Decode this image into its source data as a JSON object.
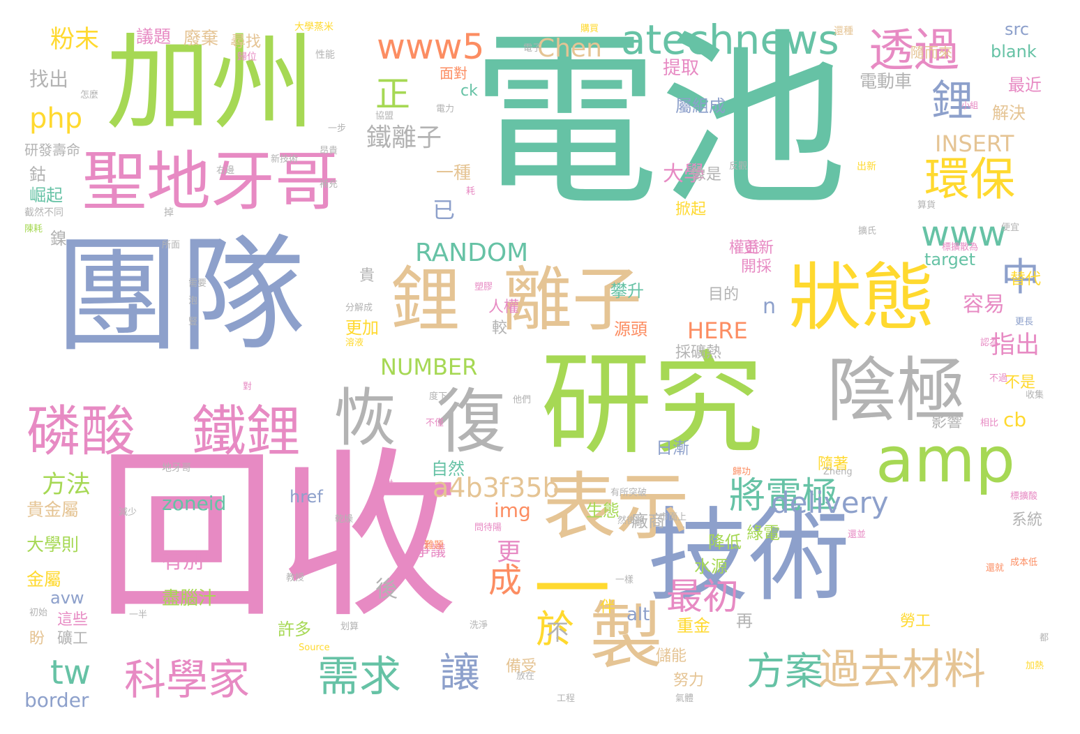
{
  "palette": {
    "green": "#66c2a5",
    "orange": "#fc8d62",
    "blue": "#8da0cb",
    "pink": "#e78ac3",
    "lime": "#a6d854",
    "yellow": "#ffd92f",
    "tan": "#e5c494",
    "gray": "#b3b3b3"
  },
  "words": [
    {
      "text": "電池",
      "color": "green"
    },
    {
      "text": "加州",
      "color": "lime"
    },
    {
      "text": "團隊",
      "color": "blue"
    },
    {
      "text": "回收",
      "color": "pink"
    },
    {
      "text": "研究",
      "color": "lime"
    },
    {
      "text": "技術",
      "color": "blue"
    },
    {
      "text": "聖地牙哥",
      "color": "pink"
    },
    {
      "text": "鋰",
      "color": "tan"
    },
    {
      "text": "離子",
      "color": "tan"
    },
    {
      "text": "狀態",
      "color": "yellow"
    },
    {
      "text": "陰極",
      "color": "gray"
    },
    {
      "text": "amp",
      "color": "lime"
    },
    {
      "text": "表示",
      "color": "tan"
    },
    {
      "text": "製",
      "color": "tan"
    },
    {
      "text": "恢",
      "color": "gray"
    },
    {
      "text": "復",
      "color": "gray"
    },
    {
      "text": "磷酸",
      "color": "pink"
    },
    {
      "text": "鐵鋰",
      "color": "pink"
    },
    {
      "text": "一",
      "color": "yellow"
    },
    {
      "text": "atechnews",
      "color": "green"
    },
    {
      "text": "www5",
      "color": "orange"
    },
    {
      "text": "透過",
      "color": "pink"
    },
    {
      "text": "環保",
      "color": "yellow"
    },
    {
      "text": "鋰",
      "color": "blue"
    },
    {
      "text": "www",
      "color": "green"
    },
    {
      "text": "中",
      "color": "blue"
    },
    {
      "text": "科學家",
      "color": "pink"
    },
    {
      "text": "需求",
      "color": "green"
    },
    {
      "text": "讓",
      "color": "blue"
    },
    {
      "text": "方案",
      "color": "green"
    },
    {
      "text": "過去材料",
      "color": "tan"
    },
    {
      "text": "將電極",
      "color": "green"
    },
    {
      "text": "於",
      "color": "yellow"
    },
    {
      "text": "最初",
      "color": "pink"
    },
    {
      "text": "delivery",
      "color": "blue"
    },
    {
      "text": "a4b3f35b",
      "color": "tan"
    },
    {
      "text": "成",
      "color": "orange"
    },
    {
      "text": "正",
      "color": "lime"
    },
    {
      "text": "php",
      "color": "yellow"
    },
    {
      "text": "Chen",
      "color": "tan"
    },
    {
      "text": "鐵離子",
      "color": "gray"
    },
    {
      "text": "RANDOM",
      "color": "green"
    },
    {
      "text": "NUMBER",
      "color": "lime"
    },
    {
      "text": "HERE",
      "color": "orange"
    },
    {
      "text": "INSERT",
      "color": "tan"
    },
    {
      "text": "粉末",
      "color": "yellow"
    },
    {
      "text": "議題",
      "color": "pink"
    },
    {
      "text": "廢棄",
      "color": "tan"
    },
    {
      "text": "尋找",
      "color": "tan"
    },
    {
      "text": "找出",
      "color": "gray"
    },
    {
      "text": "n",
      "color": "blue"
    },
    {
      "text": "已",
      "color": "blue"
    },
    {
      "text": "大學",
      "color": "pink"
    },
    {
      "text": "容易",
      "color": "pink"
    },
    {
      "text": "指出",
      "color": "pink"
    },
    {
      "text": "cb",
      "color": "yellow"
    },
    {
      "text": "tw",
      "color": "green"
    },
    {
      "text": "方法",
      "color": "lime"
    },
    {
      "text": "zoneid",
      "color": "green"
    },
    {
      "text": "img",
      "color": "orange"
    },
    {
      "text": "有別",
      "color": "pink"
    },
    {
      "text": "後",
      "color": "gray"
    },
    {
      "text": "更",
      "color": "pink"
    },
    {
      "text": "不",
      "color": "gray"
    },
    {
      "text": "href",
      "color": "blue"
    },
    {
      "text": "avw",
      "color": "blue"
    },
    {
      "text": "alt",
      "color": "blue"
    },
    {
      "text": "border",
      "color": "blue"
    },
    {
      "text": "src",
      "color": "blue"
    },
    {
      "text": "blank",
      "color": "green"
    },
    {
      "text": "target",
      "color": "green"
    },
    {
      "text": "ck",
      "color": "green"
    },
    {
      "text": "提取",
      "color": "pink"
    },
    {
      "text": "屬組成",
      "color": "blue"
    },
    {
      "text": "電動車",
      "color": "gray"
    },
    {
      "text": "最近",
      "color": "pink"
    },
    {
      "text": "解決",
      "color": "tan"
    },
    {
      "text": "面對",
      "color": "orange"
    },
    {
      "text": "一種",
      "color": "tan"
    },
    {
      "text": "攀升",
      "color": "green"
    },
    {
      "text": "源頭",
      "color": "orange"
    },
    {
      "text": "採礦熱",
      "color": "gray"
    },
    {
      "text": "日漸",
      "color": "blue"
    },
    {
      "text": "自然",
      "color": "green"
    },
    {
      "text": "生態",
      "color": "lime"
    },
    {
      "text": "降低",
      "color": "lime"
    },
    {
      "text": "綠電",
      "color": "lime"
    },
    {
      "text": "水源",
      "color": "lime"
    },
    {
      "text": "廠商",
      "color": "gray"
    },
    {
      "text": "盡腦汁",
      "color": "lime"
    },
    {
      "text": "許多",
      "color": "lime"
    },
    {
      "text": "重金",
      "color": "yellow"
    },
    {
      "text": "再",
      "color": "gray"
    },
    {
      "text": "儲能",
      "color": "tan"
    },
    {
      "text": "努力",
      "color": "tan"
    },
    {
      "text": "備受",
      "color": "tan"
    },
    {
      "text": "貴金屬",
      "color": "tan"
    },
    {
      "text": "大學則",
      "color": "lime"
    },
    {
      "text": "金屬",
      "color": "yellow"
    },
    {
      "text": "這些",
      "color": "pink"
    },
    {
      "text": "盼",
      "color": "tan"
    },
    {
      "text": "礦工",
      "color": "gray"
    },
    {
      "text": "鈷",
      "color": "gray"
    },
    {
      "text": "崛起",
      "color": "green"
    },
    {
      "text": "鎳",
      "color": "gray"
    },
    {
      "text": "研發壽命",
      "color": "gray"
    },
    {
      "text": "權益",
      "color": "pink"
    },
    {
      "text": "貴",
      "color": "gray"
    },
    {
      "text": "更加",
      "color": "yellow"
    },
    {
      "text": "較",
      "color": "gray"
    },
    {
      "text": "影響",
      "color": "gray"
    },
    {
      "text": "隨著",
      "color": "yellow"
    },
    {
      "text": "系統",
      "color": "gray"
    },
    {
      "text": "勞工",
      "color": "yellow"
    },
    {
      "text": "不是",
      "color": "yellow"
    },
    {
      "text": "更新",
      "color": "pink"
    },
    {
      "text": "替代",
      "color": "yellow"
    },
    {
      "text": "像是",
      "color": "gray"
    },
    {
      "text": "掀起",
      "color": "yellow"
    },
    {
      "text": "開採",
      "color": "pink"
    },
    {
      "text": "目的",
      "color": "gray"
    },
    {
      "text": "伴",
      "color": "yellow"
    },
    {
      "text": "爭議",
      "color": "pink"
    },
    {
      "text": "人權",
      "color": "pink"
    },
    {
      "text": "隨而來",
      "color": "tan"
    },
    {
      "text": "大學蒸米",
      "color": "yellow"
    },
    {
      "text": "購買",
      "color": "yellow"
    },
    {
      "text": "電子",
      "color": "gray"
    },
    {
      "text": "還種",
      "color": "tan"
    },
    {
      "text": "歸位",
      "color": "pink"
    },
    {
      "text": "性能",
      "color": "gray"
    },
    {
      "text": "怎麼",
      "color": "gray"
    },
    {
      "text": "協盟",
      "color": "gray"
    },
    {
      "text": "電力",
      "color": "gray"
    },
    {
      "text": "小組",
      "color": "pink"
    },
    {
      "text": "一步",
      "color": "gray"
    },
    {
      "text": "昂貴",
      "color": "gray"
    },
    {
      "text": "新技術",
      "color": "gray"
    },
    {
      "text": "右邊",
      "color": "gray"
    },
    {
      "text": "補充",
      "color": "gray"
    },
    {
      "text": "掉",
      "color": "gray"
    },
    {
      "text": "截然不同",
      "color": "gray"
    },
    {
      "text": "所面",
      "color": "gray"
    },
    {
      "text": "反觀",
      "color": "gray"
    },
    {
      "text": "出新",
      "color": "yellow"
    },
    {
      "text": "算貨",
      "color": "gray"
    },
    {
      "text": "擴氏",
      "color": "gray"
    },
    {
      "text": "便宜",
      "color": "gray"
    },
    {
      "text": "標擴散為",
      "color": "pink"
    },
    {
      "text": "地牙哥",
      "color": "gray"
    },
    {
      "text": "減少",
      "color": "gray"
    },
    {
      "text": "分解成",
      "color": "gray"
    },
    {
      "text": "溶液",
      "color": "yellow"
    },
    {
      "text": "塑膠",
      "color": "pink"
    },
    {
      "text": "提供",
      "color": "pink"
    },
    {
      "text": "有所突破",
      "color": "gray"
    },
    {
      "text": "歸功",
      "color": "orange"
    },
    {
      "text": "Zheng",
      "color": "gray"
    },
    {
      "text": "標擴酸",
      "color": "pink"
    },
    {
      "text": "乾燥",
      "color": "gray"
    },
    {
      "text": "然後將",
      "color": "gray"
    },
    {
      "text": "市面上",
      "color": "gray"
    },
    {
      "text": "問待陽",
      "color": "pink"
    },
    {
      "text": "難題",
      "color": "orange"
    },
    {
      "text": "還並",
      "color": "pink"
    },
    {
      "text": "成本低",
      "color": "orange"
    },
    {
      "text": "還就",
      "color": "orange"
    },
    {
      "text": "一樣",
      "color": "gray"
    },
    {
      "text": "一半",
      "color": "gray"
    },
    {
      "text": "初始",
      "color": "gray"
    },
    {
      "text": "教授",
      "color": "gray"
    },
    {
      "text": "划算",
      "color": "gray"
    },
    {
      "text": "Source",
      "color": "yellow"
    },
    {
      "text": "洗淨",
      "color": "gray"
    },
    {
      "text": "放在",
      "color": "gray"
    },
    {
      "text": "工程",
      "color": "gray"
    },
    {
      "text": "氣體",
      "color": "gray"
    },
    {
      "text": "加熱",
      "color": "yellow"
    },
    {
      "text": "都",
      "color": "gray"
    },
    {
      "text": "不僅",
      "color": "pink"
    },
    {
      "text": "他們",
      "color": "gray"
    },
    {
      "text": "相比",
      "color": "pink"
    },
    {
      "text": "收集",
      "color": "gray"
    },
    {
      "text": "認為",
      "color": "pink"
    },
    {
      "text": "不過",
      "color": "pink"
    },
    {
      "text": "度下",
      "color": "gray"
    },
    {
      "text": "對",
      "color": "pink"
    },
    {
      "text": "更長",
      "color": "blue"
    },
    {
      "text": "需要",
      "color": "gray"
    },
    {
      "text": "泡",
      "color": "gray"
    },
    {
      "text": "豎",
      "color": "gray"
    },
    {
      "text": "陳耗",
      "color": "lime"
    },
    {
      "text": "耗",
      "color": "pink"
    }
  ]
}
